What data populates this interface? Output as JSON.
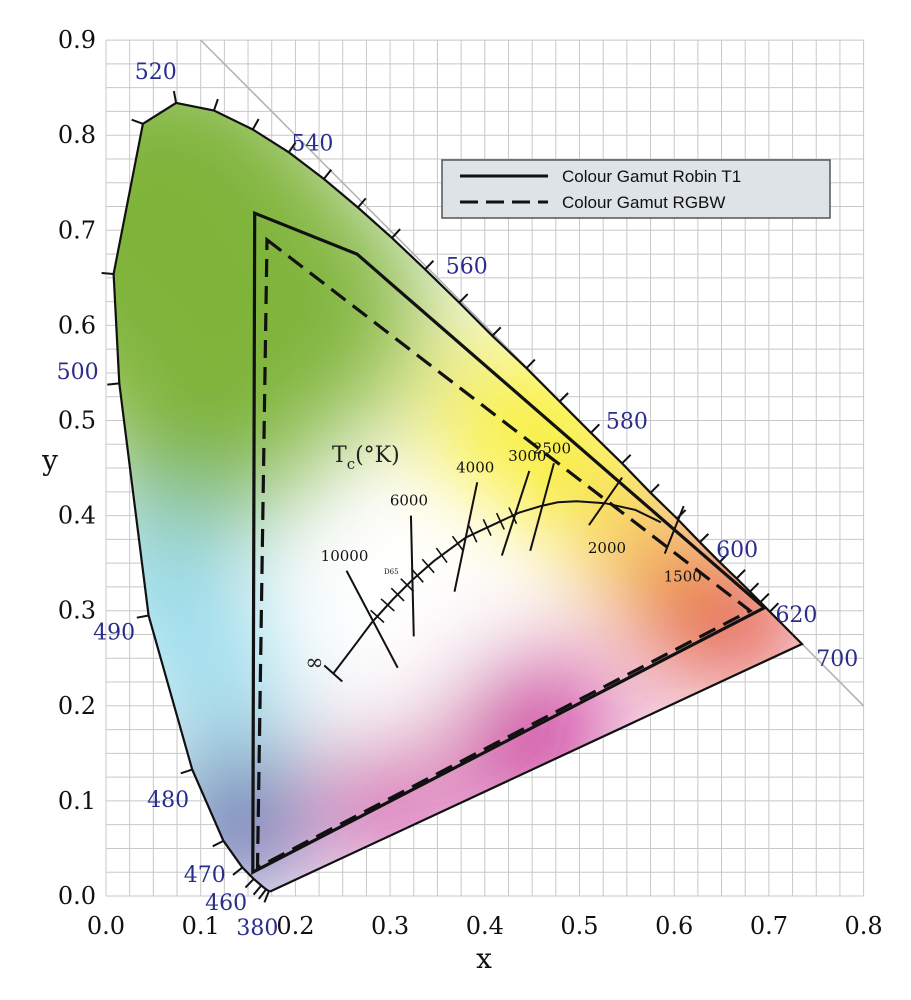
{
  "chart_data": {
    "type": "scatter",
    "xlabel": "x",
    "ylabel": "y",
    "xlim": [
      0.0,
      0.8
    ],
    "ylim": [
      0.0,
      0.9
    ],
    "grid": true,
    "x_ticks": [
      "0.0",
      "0.1",
      "0.2",
      "0.3",
      "0.4",
      "0.5",
      "0.6",
      "0.7",
      "0.8"
    ],
    "y_ticks": [
      "0.0",
      "0.1",
      "0.2",
      "0.3",
      "0.4",
      "0.5",
      "0.6",
      "0.7",
      "0.8",
      "0.9"
    ],
    "legend": {
      "placement": "top-right",
      "entries": [
        {
          "name": "Colour Gamut Robin T1",
          "style": "solid"
        },
        {
          "name": "Colour Gamut RGBW",
          "style": "dashed"
        }
      ]
    },
    "series": [
      {
        "name": "Colour Gamut Robin T1",
        "style": "solid",
        "points": [
          [
            0.157,
            0.718
          ],
          [
            0.265,
            0.675
          ],
          [
            0.695,
            0.303
          ],
          [
            0.155,
            0.025
          ]
        ]
      },
      {
        "name": "Colour Gamut RGBW",
        "style": "dashed",
        "points": [
          [
            0.17,
            0.69
          ],
          [
            0.68,
            0.3
          ],
          [
            0.16,
            0.03
          ]
        ]
      }
    ],
    "spectral_locus": [
      [
        0.174,
        0.005
      ],
      [
        0.172,
        0.005
      ],
      [
        0.169,
        0.007
      ],
      [
        0.164,
        0.011
      ],
      [
        0.156,
        0.018
      ],
      [
        0.144,
        0.03
      ],
      [
        0.124,
        0.058
      ],
      [
        0.091,
        0.133
      ],
      [
        0.045,
        0.295
      ],
      [
        0.014,
        0.539
      ],
      [
        0.008,
        0.654
      ],
      [
        0.039,
        0.812
      ],
      [
        0.074,
        0.834
      ],
      [
        0.114,
        0.826
      ],
      [
        0.155,
        0.806
      ],
      [
        0.193,
        0.782
      ],
      [
        0.23,
        0.754
      ],
      [
        0.266,
        0.724
      ],
      [
        0.302,
        0.692
      ],
      [
        0.337,
        0.659
      ],
      [
        0.373,
        0.624
      ],
      [
        0.408,
        0.589
      ],
      [
        0.444,
        0.555
      ],
      [
        0.479,
        0.52
      ],
      [
        0.512,
        0.487
      ],
      [
        0.545,
        0.455
      ],
      [
        0.575,
        0.424
      ],
      [
        0.603,
        0.397
      ],
      [
        0.627,
        0.372
      ],
      [
        0.648,
        0.351
      ],
      [
        0.666,
        0.334
      ],
      [
        0.68,
        0.32
      ],
      [
        0.691,
        0.309
      ],
      [
        0.701,
        0.299
      ],
      [
        0.735,
        0.265
      ]
    ],
    "wavelength_labels": [
      {
        "text": "520",
        "x": 0.074,
        "y": 0.834
      },
      {
        "text": "540",
        "x": 0.23,
        "y": 0.754
      },
      {
        "text": "560",
        "x": 0.373,
        "y": 0.624
      },
      {
        "text": "580",
        "x": 0.512,
        "y": 0.487
      },
      {
        "text": "600",
        "x": 0.627,
        "y": 0.372
      },
      {
        "text": "620",
        "x": 0.691,
        "y": 0.309
      },
      {
        "text": "700",
        "x": 0.735,
        "y": 0.265
      },
      {
        "text": "500",
        "x": 0.008,
        "y": 0.539
      },
      {
        "text": "490",
        "x": 0.045,
        "y": 0.295
      },
      {
        "text": "480",
        "x": 0.091,
        "y": 0.133
      },
      {
        "text": "470",
        "x": 0.124,
        "y": 0.058
      },
      {
        "text": "460",
        "x": 0.144,
        "y": 0.03
      },
      {
        "text": "380",
        "x": 0.174,
        "y": 0.005
      }
    ],
    "planckian_locus": {
      "label": "T_c(°K)",
      "infinity_symbol": "∞",
      "curve": [
        [
          0.24,
          0.234
        ],
        [
          0.26,
          0.26
        ],
        [
          0.281,
          0.288
        ],
        [
          0.303,
          0.312
        ],
        [
          0.323,
          0.332
        ],
        [
          0.346,
          0.352
        ],
        [
          0.38,
          0.377
        ],
        [
          0.41,
          0.391
        ],
        [
          0.436,
          0.403
        ],
        [
          0.459,
          0.41
        ],
        [
          0.477,
          0.414
        ],
        [
          0.497,
          0.415
        ],
        [
          0.527,
          0.413
        ],
        [
          0.559,
          0.406
        ],
        [
          0.586,
          0.393
        ]
      ],
      "isotherms": [
        {
          "label": "10000",
          "points": [
            [
              0.254,
              0.342
            ],
            [
              0.308,
              0.24
            ]
          ]
        },
        {
          "label": "6000",
          "points": [
            [
              0.322,
              0.4
            ],
            [
              0.325,
              0.273
            ]
          ]
        },
        {
          "label": "4000",
          "points": [
            [
              0.392,
              0.435
            ],
            [
              0.368,
              0.32
            ]
          ]
        },
        {
          "label": "3000",
          "points": [
            [
              0.447,
              0.447
            ],
            [
              0.418,
              0.358
            ]
          ]
        },
        {
          "label": "2500",
          "points": [
            [
              0.473,
              0.455
            ],
            [
              0.448,
              0.363
            ]
          ]
        },
        {
          "label": "2000",
          "points": [
            [
              0.545,
              0.44
            ],
            [
              0.51,
              0.39
            ]
          ]
        },
        {
          "label": "1500",
          "points": [
            [
              0.61,
              0.41
            ],
            [
              0.59,
              0.36
            ]
          ]
        }
      ],
      "d65_label": "D65"
    },
    "colors": {
      "green": "#7fb43a",
      "yellow": "#f7ec16",
      "orange": "#f08a1e",
      "red": "#d9161c",
      "magenta": "#c2148a",
      "blue": "#2c3e94",
      "cyan": "#8ad6e8",
      "wavelength_label": "#2b2d8c"
    }
  }
}
